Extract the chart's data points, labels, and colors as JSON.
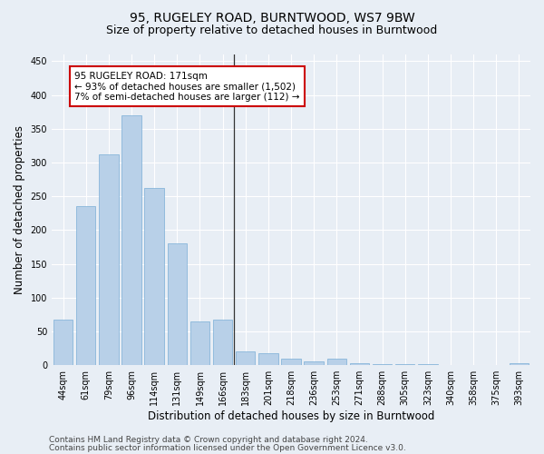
{
  "title": "95, RUGELEY ROAD, BURNTWOOD, WS7 9BW",
  "subtitle": "Size of property relative to detached houses in Burntwood",
  "xlabel": "Distribution of detached houses by size in Burntwood",
  "ylabel": "Number of detached properties",
  "categories": [
    "44sqm",
    "61sqm",
    "79sqm",
    "96sqm",
    "114sqm",
    "131sqm",
    "149sqm",
    "166sqm",
    "183sqm",
    "201sqm",
    "218sqm",
    "236sqm",
    "253sqm",
    "271sqm",
    "288sqm",
    "305sqm",
    "323sqm",
    "340sqm",
    "358sqm",
    "375sqm",
    "393sqm"
  ],
  "values": [
    67,
    235,
    312,
    370,
    263,
    180,
    65,
    68,
    20,
    18,
    10,
    5,
    10,
    3,
    1,
    1,
    1,
    0,
    0,
    0,
    3
  ],
  "bar_color": "#b8d0e8",
  "bar_edge_color": "#7aaed6",
  "vline_index": 7,
  "annotation_text": "95 RUGELEY ROAD: 171sqm\n← 93% of detached houses are smaller (1,502)\n7% of semi-detached houses are larger (112) →",
  "annotation_box_color": "#ffffff",
  "annotation_box_edge_color": "#cc0000",
  "vline_color": "#333333",
  "ylim": [
    0,
    460
  ],
  "yticks": [
    0,
    50,
    100,
    150,
    200,
    250,
    300,
    350,
    400,
    450
  ],
  "footer_line1": "Contains HM Land Registry data © Crown copyright and database right 2024.",
  "footer_line2": "Contains public sector information licensed under the Open Government Licence v3.0.",
  "background_color": "#e8eef5",
  "plot_bg_color": "#e8eef5",
  "grid_color": "#ffffff",
  "title_fontsize": 10,
  "subtitle_fontsize": 9,
  "axis_label_fontsize": 8.5,
  "tick_fontsize": 7,
  "footer_fontsize": 6.5,
  "annotation_fontsize": 7.5
}
